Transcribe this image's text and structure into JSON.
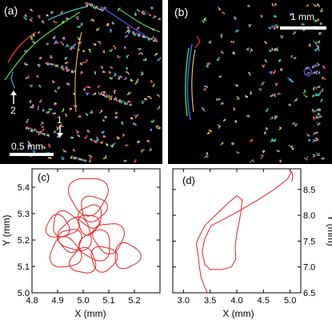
{
  "panels": {
    "a": {
      "label": "(a)",
      "scale_bar": "0.5 mm",
      "arrow_1": "1",
      "arrow_2": "2"
    },
    "b": {
      "label": "(b)",
      "scale_bar": "1 mm"
    },
    "c": {
      "label": "(c)"
    },
    "d": {
      "label": "(d)"
    }
  },
  "chart_data": [
    {
      "panel": "c",
      "type": "line",
      "xlabel": "X (mm)",
      "ylabel": "Y (mm)",
      "xlim": [
        4.8,
        5.3
      ],
      "ylim": [
        5.0,
        5.47
      ],
      "x_ticks": [
        "4.8",
        "4.9",
        "5.0",
        "5.1",
        "5.2"
      ],
      "y_ticks": [
        "5.0",
        "5.1",
        "5.2",
        "5.3",
        "5.4"
      ],
      "y_axis_side": "left",
      "line_color": "#ee2222",
      "loops": [
        {
          "cx": 5.02,
          "cy": 5.37,
          "r": 0.075
        },
        {
          "cx": 5.04,
          "cy": 5.32,
          "r": 0.05
        },
        {
          "cx": 4.93,
          "cy": 5.26,
          "r": 0.05
        },
        {
          "cx": 4.9,
          "cy": 5.25,
          "r": 0.045
        },
        {
          "cx": 4.97,
          "cy": 5.22,
          "r": 0.065
        },
        {
          "cx": 5.03,
          "cy": 5.29,
          "r": 0.045
        },
        {
          "cx": 5.1,
          "cy": 5.21,
          "r": 0.06
        },
        {
          "cx": 5.08,
          "cy": 5.13,
          "r": 0.05
        },
        {
          "cx": 5.17,
          "cy": 5.14,
          "r": 0.05
        },
        {
          "cx": 4.93,
          "cy": 5.15,
          "r": 0.06
        },
        {
          "cx": 5.0,
          "cy": 5.12,
          "r": 0.05
        },
        {
          "cx": 5.05,
          "cy": 5.18,
          "r": 0.06
        },
        {
          "cx": 4.95,
          "cy": 5.2,
          "r": 0.045
        },
        {
          "cx": 5.02,
          "cy": 5.26,
          "r": 0.04
        }
      ]
    },
    {
      "panel": "d",
      "type": "line",
      "xlabel": "X (mm)",
      "ylabel": "Y (mm)",
      "xlim": [
        2.8,
        5.2
      ],
      "ylim": [
        6.5,
        8.9
      ],
      "x_ticks": [
        "3.0",
        "3.5",
        "4.0",
        "4.5",
        "5.0"
      ],
      "y_ticks": [
        "6.5",
        "7.0",
        "7.5",
        "8.0",
        "8.5"
      ],
      "y_axis_side": "right",
      "line_color": "#ee2222",
      "points": [
        [
          3.45,
          6.5
        ],
        [
          3.38,
          6.65
        ],
        [
          3.33,
          6.8
        ],
        [
          3.3,
          7.0
        ],
        [
          3.28,
          7.2
        ],
        [
          3.24,
          7.45
        ],
        [
          3.3,
          7.6
        ],
        [
          3.4,
          7.8
        ],
        [
          3.6,
          8.0
        ],
        [
          3.85,
          8.25
        ],
        [
          4.0,
          8.38
        ],
        [
          4.1,
          8.3
        ],
        [
          4.08,
          8.1
        ],
        [
          4.05,
          7.9
        ],
        [
          4.0,
          7.65
        ],
        [
          3.97,
          7.4
        ],
        [
          3.98,
          7.15
        ],
        [
          3.9,
          7.0
        ],
        [
          3.72,
          6.95
        ],
        [
          3.5,
          6.95
        ],
        [
          3.4,
          7.05
        ],
        [
          3.35,
          7.3
        ],
        [
          3.4,
          7.55
        ],
        [
          3.52,
          7.8
        ],
        [
          3.8,
          7.95
        ],
        [
          4.1,
          8.12
        ],
        [
          4.4,
          8.3
        ],
        [
          4.7,
          8.5
        ],
        [
          4.95,
          8.7
        ],
        [
          5.03,
          8.85
        ],
        [
          5.05,
          8.75
        ],
        [
          5.03,
          8.65
        ]
      ]
    }
  ]
}
